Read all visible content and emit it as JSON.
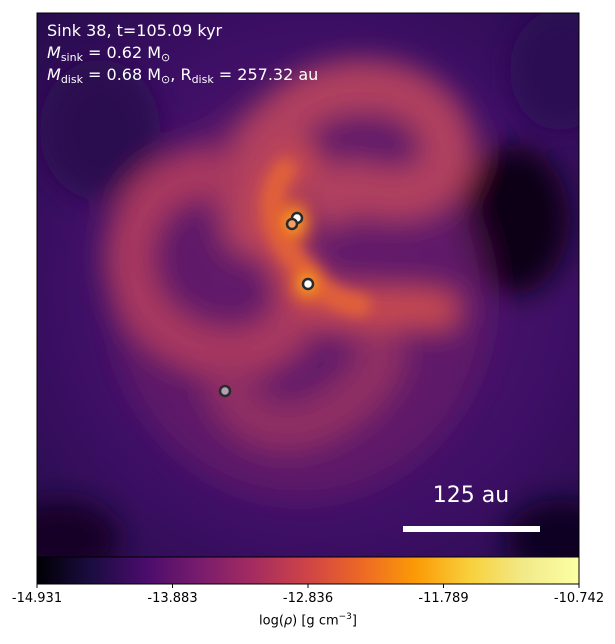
{
  "annotation": {
    "line1": "Sink 38, t=105.09 kyr",
    "m_sink_symbol": "M",
    "m_sink_sub": "sink",
    "m_sink_value": " = 0.62 M",
    "sun_sub": "⊙",
    "m_disk_symbol": "M",
    "m_disk_sub": "disk",
    "m_disk_value": " = 0.68 M",
    "r_disk_prefix": ", R",
    "r_disk_sub": "disk",
    "r_disk_value": " = 257.32 au"
  },
  "scalebar": {
    "label": "125 au"
  },
  "colorbar": {
    "min": -14.931,
    "max": -10.742,
    "ticks": [
      "-14.931",
      "-13.883",
      "-12.836",
      "-11.789",
      "-10.742"
    ],
    "label_prefix": "log(",
    "label_rho": "ρ",
    "label_units": ") [g cm",
    "label_exp": "−3",
    "label_close": "]",
    "colormap": "inferno"
  },
  "sinks": [
    {
      "name": "sink-a",
      "fill": "#ffffff"
    },
    {
      "name": "sink-b",
      "fill": "#f2a06a"
    },
    {
      "name": "sink-c",
      "fill": "#ffffff"
    },
    {
      "name": "sink-d",
      "fill": "#b0a0b8"
    }
  ]
}
